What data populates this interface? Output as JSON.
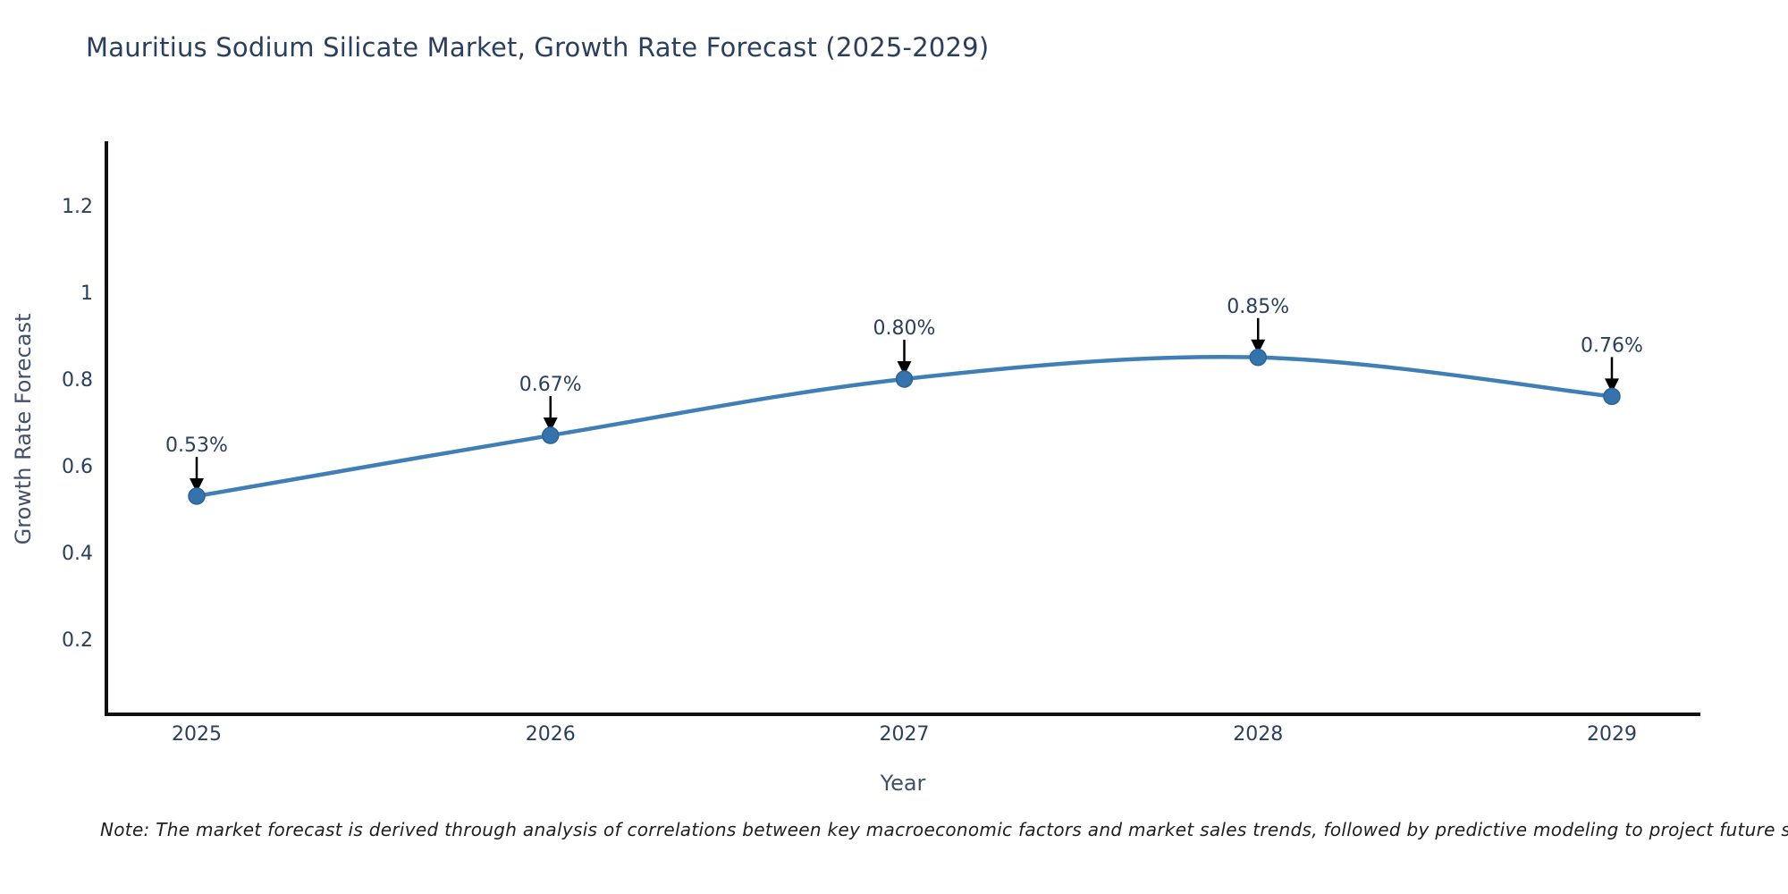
{
  "page": {
    "background": "#ffffff"
  },
  "chart_data": {
    "type": "line",
    "title": "Mauritius Sodium Silicate Market, Growth Rate Forecast (2025-2029)",
    "xlabel": "Year",
    "ylabel": "Growth Rate Forecast",
    "categories": [
      "2025",
      "2026",
      "2027",
      "2028",
      "2029"
    ],
    "series": [
      {
        "name": "Growth Rate Forecast",
        "values": [
          0.53,
          0.67,
          0.8,
          0.85,
          0.76
        ]
      }
    ],
    "point_labels": [
      "0.53%",
      "0.67%",
      "0.80%",
      "0.85%",
      "0.76%"
    ],
    "y_ticks": [
      0.2,
      0.4,
      0.6,
      0.8,
      1,
      1.2
    ],
    "ylim": [
      0,
      1.35
    ],
    "grid": false,
    "legend": false,
    "curve": "spline",
    "line_color": "#3f7fb6",
    "marker_color": "#3473ab",
    "marker_edge_color": "#2d6397",
    "annotation_arrow_color": "#000000",
    "axis_line_color": "#111111",
    "text_color": "#2a3f5f"
  },
  "note": {
    "text": "Note: The market forecast is derived through analysis of correlations between key macroeconomic factors and market sales trends, followed by predictive modeling to project future sales"
  }
}
